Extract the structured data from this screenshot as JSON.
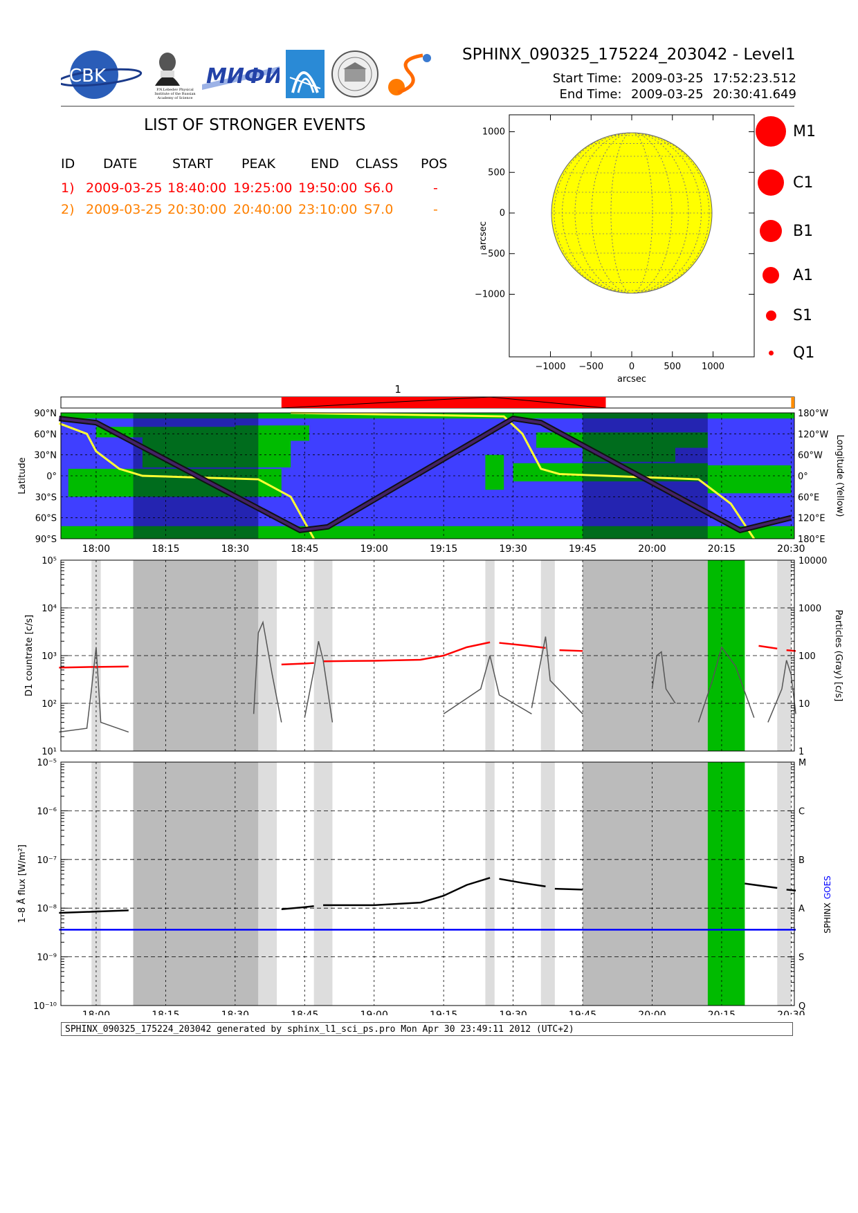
{
  "header": {
    "title": "SPHINX_090325_175224_203042 - Level1",
    "start_label": "Start Time:",
    "start_date": "2009-03-25",
    "start_time": "17:52:23.512",
    "end_label": "End Time:",
    "end_date": "2009-03-25",
    "end_time": "20:30:41.649"
  },
  "logos": {
    "cbk_text": "CBK",
    "cbk_small": "PAN",
    "lebedev_line1": "P.N.Lebedev Physical",
    "lebedev_line2": "Institute of the Russian",
    "lebedev_line3": "Academy of Science",
    "mifi_text": "МИФИ"
  },
  "events": {
    "title": "LIST OF STRONGER EVENTS",
    "columns": [
      "ID",
      "DATE",
      "START",
      "PEAK",
      "END",
      "CLASS",
      "POS"
    ],
    "rows": [
      {
        "id": "1)",
        "date": "2009-03-25",
        "start": "18:40:00",
        "peak": "19:25:00",
        "end": "19:50:00",
        "class": "S6.0",
        "pos": "-",
        "color": "#ff0000"
      },
      {
        "id": "2)",
        "date": "2009-03-25",
        "start": "20:30:00",
        "peak": "20:40:00",
        "end": "23:10:00",
        "class": "S7.0",
        "pos": "-",
        "color": "#ff8000"
      }
    ]
  },
  "sun_panel": {
    "xlabel": "arcsec",
    "ylabel": "arcsec",
    "xticks": [
      "−1000",
      "−500",
      "0",
      "500",
      "1000"
    ],
    "yticks": [
      "1000",
      "500",
      "0",
      "−500",
      "−1000"
    ],
    "disk_color": "#ffff00"
  },
  "class_legend": [
    {
      "label": "M1",
      "size": 44
    },
    {
      "label": "C1",
      "size": 38
    },
    {
      "label": "B1",
      "size": 32
    },
    {
      "label": "A1",
      "size": 24
    },
    {
      "label": "S1",
      "size": 15
    },
    {
      "label": "Q1",
      "size": 7
    }
  ],
  "event_bar": {
    "label": "1",
    "red_color": "#ff0000",
    "orange_color": "#ff8c00"
  },
  "orbit_panel": {
    "ylabel_left": "Latitude",
    "ylabel_right": "Longitude (Yellow)",
    "lat_ticks": [
      "90°N",
      "60°N",
      "30°N",
      "0°",
      "30°S",
      "60°S",
      "90°S"
    ],
    "lon_ticks": [
      "180°W",
      "120°W",
      "60°W",
      "0°",
      "60°E",
      "120°E",
      "180°E"
    ],
    "ocean_color": "#3f3fff",
    "land_color": "#00bb00"
  },
  "time_axis": {
    "ticks": [
      "18:00",
      "18:15",
      "18:30",
      "18:45",
      "19:00",
      "19:15",
      "19:30",
      "19:45",
      "20:00",
      "20:15",
      "20:30"
    ]
  },
  "chart_data": [
    {
      "type": "line",
      "title": "",
      "xlabel": "",
      "ylabel": "D1 countrate [c/s]",
      "ylabel_right": "Particles (Gray) [c/s]",
      "yscale": "log",
      "ylim": [
        10,
        100000
      ],
      "yticks_left": [
        "10¹",
        "10²",
        "10³",
        "10⁴",
        "10⁵"
      ],
      "yticks_right": [
        "1",
        "10",
        "100",
        "1000",
        "10000"
      ],
      "x_range": [
        "17:52",
        "20:31"
      ],
      "series": [
        {
          "color": "#ff0000",
          "segments": [
            {
              "x": [
                "17:52",
                "18:00",
                "18:07"
              ],
              "y": [
                560,
                580,
                590
              ]
            },
            {
              "x": [
                "18:40",
                "18:45",
                "18:47"
              ],
              "y": [
                650,
                680,
                700
              ]
            },
            {
              "x": [
                "18:49",
                "19:00",
                "19:10",
                "19:15",
                "19:20",
                "19:25"
              ],
              "y": [
                760,
                780,
                820,
                1000,
                1500,
                1900
              ]
            },
            {
              "x": [
                "19:27",
                "19:32",
                "19:37"
              ],
              "y": [
                1850,
                1650,
                1450
              ]
            },
            {
              "x": [
                "19:40",
                "19:45"
              ],
              "y": [
                1300,
                1250
              ]
            },
            {
              "x": [
                "20:23",
                "20:27"
              ],
              "y": [
                1600,
                1400
              ]
            },
            {
              "x": [
                "20:29",
                "20:31"
              ],
              "y": [
                1300,
                1250
              ]
            }
          ]
        },
        {
          "color": "#555555",
          "segments": [
            {
              "x": [
                "17:52",
                "17:58",
                "17:59",
                "18:00",
                "18:01",
                "18:07"
              ],
              "y": [
                25,
                30,
                200,
                1500,
                40,
                25
              ]
            },
            {
              "x": [
                "18:34",
                "18:35",
                "18:36",
                "18:38",
                "18:40"
              ],
              "y": [
                60,
                3000,
                5000,
                400,
                40
              ]
            },
            {
              "x": [
                "18:45",
                "18:47",
                "18:48",
                "18:49",
                "18:51"
              ],
              "y": [
                50,
                500,
                2000,
                800,
                40
              ]
            },
            {
              "x": [
                "19:15",
                "19:23",
                "19:25",
                "19:27",
                "19:34"
              ],
              "y": [
                60,
                200,
                1000,
                150,
                60
              ]
            },
            {
              "x": [
                "19:34",
                "19:36",
                "19:37",
                "19:38",
                "19:45"
              ],
              "y": [
                80,
                800,
                2500,
                300,
                60
              ]
            },
            {
              "x": [
                "20:00",
                "20:01",
                "20:02",
                "20:03",
                "20:05"
              ],
              "y": [
                200,
                1000,
                1200,
                200,
                100
              ]
            },
            {
              "x": [
                "20:10",
                "20:13",
                "20:15",
                "20:18",
                "20:22"
              ],
              "y": [
                40,
                300,
                1500,
                600,
                50
              ]
            },
            {
              "x": [
                "20:25",
                "20:28",
                "20:29",
                "20:30",
                "20:31"
              ],
              "y": [
                40,
                200,
                800,
                400,
                60
              ]
            }
          ]
        }
      ],
      "bands": [
        {
          "x0": "17:59",
          "x1": "18:01",
          "kind": "light"
        },
        {
          "x0": "18:08",
          "x1": "18:35",
          "kind": "dark"
        },
        {
          "x0": "18:35",
          "x1": "18:39",
          "kind": "light"
        },
        {
          "x0": "18:47",
          "x1": "18:51",
          "kind": "light"
        },
        {
          "x0": "19:24",
          "x1": "19:26",
          "kind": "light"
        },
        {
          "x0": "19:36",
          "x1": "19:39",
          "kind": "light"
        },
        {
          "x0": "19:45",
          "x1": "20:12",
          "kind": "dark"
        },
        {
          "x0": "20:12",
          "x1": "20:20",
          "kind": "green"
        },
        {
          "x0": "20:27",
          "x1": "20:30",
          "kind": "light"
        }
      ]
    },
    {
      "type": "line",
      "title": "",
      "xlabel": "",
      "ylabel": "1–8 Å flux [W/m²]",
      "ylabel_right_1": "SPHINX",
      "ylabel_right_2": "GOES",
      "yscale": "log",
      "ylim": [
        1e-10,
        1e-05
      ],
      "yticks_left": [
        "10⁻¹⁰",
        "10⁻⁹",
        "10⁻⁸",
        "10⁻⁷",
        "10⁻⁶",
        "10⁻⁵"
      ],
      "class_ticks": [
        "Q",
        "S",
        "A",
        "B",
        "C",
        "M"
      ],
      "series": [
        {
          "name": "SPHINX",
          "color": "#000000",
          "segments": [
            {
              "x": [
                "17:52",
                "18:00",
                "18:07"
              ],
              "y": [
                8e-09,
                8.5e-09,
                9e-09
              ]
            },
            {
              "x": [
                "18:40",
                "18:45",
                "18:47"
              ],
              "y": [
                9.5e-09,
                1.05e-08,
                1.1e-08
              ]
            },
            {
              "x": [
                "18:49",
                "19:00",
                "19:10",
                "19:15",
                "19:20",
                "19:25"
              ],
              "y": [
                1.15e-08,
                1.15e-08,
                1.3e-08,
                1.8e-08,
                3e-08,
                4.2e-08
              ]
            },
            {
              "x": [
                "19:27",
                "19:32",
                "19:37"
              ],
              "y": [
                4e-08,
                3.3e-08,
                2.8e-08
              ]
            },
            {
              "x": [
                "19:39",
                "19:45"
              ],
              "y": [
                2.5e-08,
                2.4e-08
              ]
            },
            {
              "x": [
                "20:20",
                "20:27"
              ],
              "y": [
                3.2e-08,
                2.6e-08
              ]
            },
            {
              "x": [
                "20:29",
                "20:31"
              ],
              "y": [
                2.4e-08,
                2.3e-08
              ]
            }
          ]
        },
        {
          "name": "GOES",
          "color": "#0000ff",
          "segments": [
            {
              "x": [
                "17:52",
                "20:31"
              ],
              "y": [
                3.6e-09,
                3.6e-09
              ]
            }
          ]
        }
      ],
      "bands_ref": "same as panel above"
    }
  ],
  "footer": {
    "text": "SPHINX_090325_175224_203042 generated by sphinx_l1_sci_ps.pro Mon Apr 30 23:49:11 2012 (UTC+2)"
  }
}
